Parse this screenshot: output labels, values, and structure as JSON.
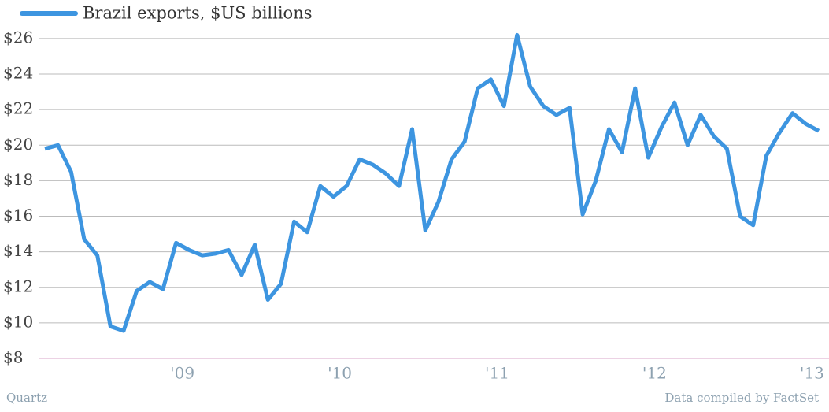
{
  "chart_data": {
    "type": "line",
    "legend": "Brazil exports, $US billions",
    "source_left": "Quartz",
    "source_right": "Data compiled by FactSet",
    "categories": [
      null,
      null,
      null,
      null,
      null,
      null,
      null,
      null,
      null,
      null,
      "'09",
      null,
      null,
      null,
      null,
      null,
      null,
      null,
      null,
      null,
      null,
      null,
      "'10",
      null,
      null,
      null,
      null,
      null,
      null,
      null,
      null,
      null,
      null,
      null,
      "'11",
      null,
      null,
      null,
      null,
      null,
      null,
      null,
      null,
      null,
      null,
      null,
      "'12",
      null,
      null,
      null,
      null,
      null,
      null,
      null,
      null,
      null,
      null,
      null,
      "'13",
      null
    ],
    "series": [
      {
        "name": "Brazil exports, $US billions",
        "color": "#3d95e0",
        "values": [
          19.8,
          20.0,
          18.5,
          14.7,
          13.8,
          9.8,
          9.55,
          11.8,
          12.3,
          11.9,
          14.5,
          14.1,
          13.8,
          13.9,
          14.1,
          12.7,
          14.4,
          11.3,
          12.2,
          15.7,
          15.1,
          17.7,
          17.1,
          17.7,
          19.2,
          18.9,
          18.4,
          17.7,
          20.9,
          15.2,
          16.8,
          19.2,
          20.2,
          23.2,
          23.7,
          22.2,
          26.2,
          23.3,
          22.2,
          21.7,
          22.1,
          16.1,
          18.0,
          20.9,
          19.6,
          23.2,
          19.3,
          21.0,
          22.4,
          20.0,
          21.7,
          20.5,
          19.8,
          16.0,
          15.5,
          19.4,
          20.7,
          21.8,
          21.2,
          20.8
        ]
      }
    ],
    "ylim": [
      8,
      26.2
    ],
    "yticks": [
      {
        "value": 8,
        "label": "$8"
      },
      {
        "value": 10,
        "label": "$10"
      },
      {
        "value": 12,
        "label": "$12"
      },
      {
        "value": 14,
        "label": "$14"
      },
      {
        "value": 16,
        "label": "$16"
      },
      {
        "value": 18,
        "label": "$18"
      },
      {
        "value": 20,
        "label": "$20"
      },
      {
        "value": 22,
        "label": "$22"
      },
      {
        "value": 24,
        "label": "$24"
      },
      {
        "value": 26,
        "label": "$26"
      }
    ],
    "grid": true
  }
}
